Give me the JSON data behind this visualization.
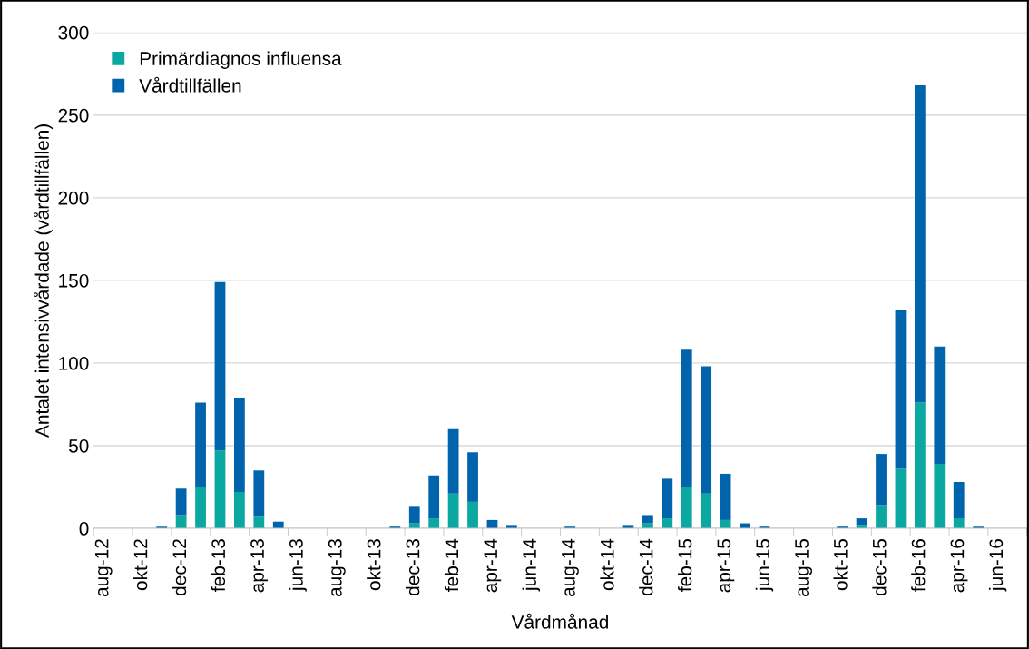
{
  "chart_data": {
    "type": "bar",
    "stacked": true,
    "xlabel": "Vårdmånad",
    "ylabel": "Antalet intensivvårdade (vårdtillfällen)",
    "categories": [
      "aug-12",
      null,
      "okt-12",
      null,
      "dec-12",
      null,
      "feb-13",
      null,
      "apr-13",
      null,
      "jun-13",
      null,
      "aug-13",
      null,
      "okt-13",
      null,
      "dec-13",
      null,
      "feb-14",
      null,
      "apr-14",
      null,
      "jun-14",
      null,
      "aug-14",
      null,
      "okt-14",
      null,
      "dec-14",
      null,
      "feb-15",
      null,
      "apr-15",
      null,
      "jun-15",
      null,
      "aug-15",
      null,
      "okt-15",
      null,
      "dec-15",
      null,
      "feb-16",
      null,
      "apr-16",
      null,
      "jun-16",
      null
    ],
    "series": [
      {
        "name": "Primärdiagnos influensa",
        "color": "#0aa8a0",
        "values": [
          0,
          0,
          0,
          0,
          8,
          25,
          47,
          22,
          7,
          0,
          0,
          0,
          0,
          0,
          0,
          0,
          3,
          6,
          21,
          16,
          0,
          0,
          0,
          0,
          0,
          0,
          0,
          0,
          3,
          6,
          25,
          21,
          5,
          0,
          0,
          0,
          0,
          0,
          0,
          2,
          14,
          36,
          76,
          39,
          6,
          0,
          0,
          0
        ]
      },
      {
        "name": "Vårdtillfällen",
        "color": "#0064ad",
        "values": [
          0,
          0,
          0,
          1,
          16,
          51,
          102,
          57,
          28,
          4,
          0,
          0,
          0,
          0,
          0,
          1,
          10,
          26,
          39,
          30,
          5,
          2,
          0,
          0,
          1,
          0,
          0,
          2,
          5,
          24,
          83,
          77,
          28,
          3,
          1,
          0,
          0,
          0,
          1,
          4,
          31,
          96,
          192,
          71,
          22,
          1,
          0,
          0
        ]
      }
    ],
    "ylim": [
      0,
      300
    ],
    "yticks": [
      0,
      50,
      100,
      150,
      200,
      250,
      300
    ],
    "grid": "y",
    "legend": "top left"
  }
}
